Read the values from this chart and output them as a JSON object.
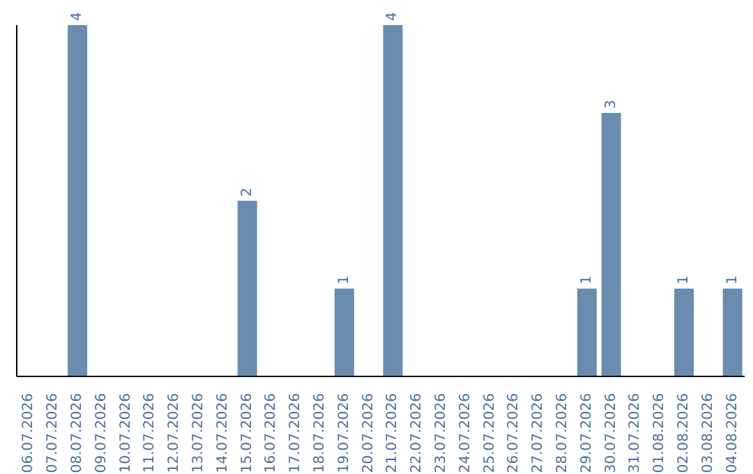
{
  "chart_data": {
    "type": "bar",
    "categories": [
      "06.07.2026",
      "07.07.2026",
      "08.07.2026",
      "09.07.2026",
      "10.07.2026",
      "11.07.2026",
      "12.07.2026",
      "13.07.2026",
      "14.07.2026",
      "15.07.2026",
      "16.07.2026",
      "17.07.2026",
      "18.07.2026",
      "19.07.2026",
      "20.07.2026",
      "21.07.2026",
      "22.07.2026",
      "23.07.2026",
      "24.07.2026",
      "25.07.2026",
      "26.07.2026",
      "27.07.2026",
      "28.07.2026",
      "29.07.2026",
      "30.07.2026",
      "31.07.2026",
      "01.08.2026",
      "02.08.2026",
      "03.08.2026",
      "04.08.2026"
    ],
    "values": [
      0,
      0,
      4,
      0,
      0,
      0,
      0,
      0,
      0,
      2,
      0,
      0,
      0,
      1,
      0,
      4,
      0,
      0,
      0,
      0,
      0,
      0,
      0,
      1,
      3,
      0,
      0,
      1,
      0,
      1
    ],
    "value_labels": [
      null,
      null,
      "4",
      null,
      null,
      null,
      null,
      null,
      null,
      "2",
      null,
      null,
      null,
      "1",
      null,
      "4",
      null,
      null,
      null,
      null,
      null,
      null,
      null,
      "1",
      "3",
      null,
      null,
      "1",
      null,
      "1"
    ],
    "color": "#6a8caf",
    "tick_labels": "x"
  }
}
